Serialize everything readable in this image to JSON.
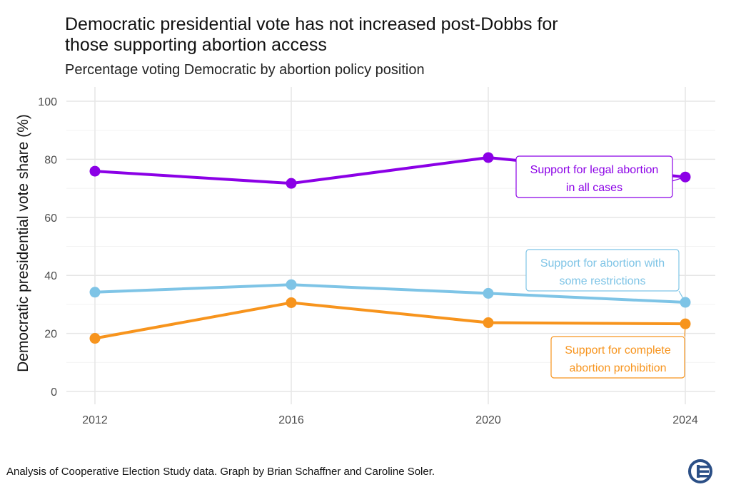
{
  "title_line1": "Democratic presidential vote has not increased post-Dobbs for",
  "title_line2": "those supporting abortion access",
  "subtitle": "Percentage voting Democratic by abortion policy position",
  "caption": "Analysis of Cooperative Election Study data. Graph by Brian Schaffner and Caroline Soler.",
  "logo_text": "CES",
  "colors": {
    "purple": "#8B00E6",
    "lightblue": "#7EC4E6",
    "orange": "#F7941D",
    "grid": "#e6e6e6"
  },
  "chart_data": {
    "type": "line",
    "title": "Democratic presidential vote has not increased post-Dobbs for those supporting abortion access",
    "subtitle": "Percentage voting Democratic by abortion policy position",
    "xlabel": "",
    "ylabel": "Democratic presidential vote share (%)",
    "x": [
      2012,
      2016,
      2020,
      2024
    ],
    "ylim": [
      0,
      100
    ],
    "yticks": [
      0,
      20,
      40,
      60,
      80,
      100
    ],
    "grid": true,
    "legend": "direct labels",
    "series": [
      {
        "name": "Support for legal abortion in all cases",
        "label_lines": [
          "Support for legal abortion",
          "in all cases"
        ],
        "color": "#8B00E6",
        "values": [
          75.9,
          71.7,
          80.6,
          73.9
        ]
      },
      {
        "name": "Support for abortion with some restrictions",
        "label_lines": [
          "Support for abortion with",
          "some restrictions"
        ],
        "color": "#7EC4E6",
        "values": [
          34.2,
          36.8,
          33.8,
          30.7
        ]
      },
      {
        "name": "Support for complete abortion prohibition",
        "label_lines": [
          "Support for complete",
          "abortion prohibition"
        ],
        "color": "#F7941D",
        "values": [
          18.3,
          30.6,
          23.7,
          23.3
        ]
      }
    ]
  }
}
